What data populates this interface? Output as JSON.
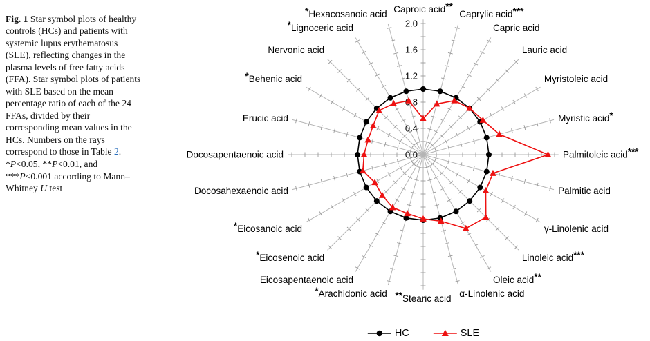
{
  "figure": {
    "caption": {
      "runs": [
        {
          "t": "Fig. 1",
          "b": true
        },
        {
          "t": "  Star symbol plots of healthy controls (HCs) and patients with systemic lupus erythematosus (SLE), reflecting changes in the plasma levels of free fatty acids (FFA). Star symbol plots of patients with SLE based on the mean percentage ratio of each of the 24 FFAs, divided by their corresponding mean values in the HCs. Numbers on the rays correspond to those in Table "
        },
        {
          "t": "2",
          "link": true
        },
        {
          "t": ". *"
        },
        {
          "t": "P",
          "i": true
        },
        {
          "t": "<0.05, **"
        },
        {
          "t": "P",
          "i": true
        },
        {
          "t": "<0.01, and ***"
        },
        {
          "t": "P",
          "i": true
        },
        {
          "t": "<0.001 according to Mann–Whitney "
        },
        {
          "t": "U",
          "i": true
        },
        {
          "t": " test"
        }
      ]
    }
  },
  "chart_data": {
    "type": "radar",
    "title": "Star symbol plot of plasma free fatty acid ratios (SLE / HC)",
    "rmax": 2.0,
    "tick_step": 0.2,
    "radial_ticks": [
      "0.0",
      "0.4",
      "0.8",
      "1.2",
      "1.6",
      "2.0"
    ],
    "legend_position": "bottom",
    "grid": "rays-with-ticks",
    "axes": [
      {
        "label": "Caproic acid",
        "sig": "**",
        "sig_pos": "after"
      },
      {
        "label": "Caprylic acid",
        "sig": "***",
        "sig_pos": "after"
      },
      {
        "label": "Capric acid",
        "sig": "",
        "sig_pos": "after"
      },
      {
        "label": "Lauric acid",
        "sig": "",
        "sig_pos": "after"
      },
      {
        "label": "Myristoleic acid",
        "sig": "",
        "sig_pos": "after"
      },
      {
        "label": "Myristic acid",
        "sig": "*",
        "sig_pos": "after"
      },
      {
        "label": "Palmitoleic acid",
        "sig": "***",
        "sig_pos": "after"
      },
      {
        "label": "Palmitic acid",
        "sig": "",
        "sig_pos": "after"
      },
      {
        "label": "γ-Linolenic acid",
        "sig": "",
        "sig_pos": "after"
      },
      {
        "label": "Linoleic acid",
        "sig": "***",
        "sig_pos": "after"
      },
      {
        "label": "Oleic acid",
        "sig": "**",
        "sig_pos": "after"
      },
      {
        "label": "α-Linolenic acid",
        "sig": "",
        "sig_pos": "after"
      },
      {
        "label": "Stearic acid",
        "sig": "**",
        "sig_pos": "before"
      },
      {
        "label": "Arachidonic acid",
        "sig": "*",
        "sig_pos": "before"
      },
      {
        "label": "Eicosapentaenoic acid",
        "sig": "",
        "sig_pos": "before"
      },
      {
        "label": "Eicosenoic acid",
        "sig": "*",
        "sig_pos": "before"
      },
      {
        "label": "Eicosanoic acid",
        "sig": "*",
        "sig_pos": "before"
      },
      {
        "label": "Docosahexaenoic acid",
        "sig": "",
        "sig_pos": "before"
      },
      {
        "label": "Docosapentaenoic acid",
        "sig": "",
        "sig_pos": "before"
      },
      {
        "label": "Erucic acid",
        "sig": "",
        "sig_pos": "before"
      },
      {
        "label": "Behenic acid",
        "sig": "*",
        "sig_pos": "before"
      },
      {
        "label": "Nervonic acid",
        "sig": "",
        "sig_pos": "before"
      },
      {
        "label": "Lignoceric acid",
        "sig": "*",
        "sig_pos": "before"
      },
      {
        "label": "Hexacosanoic acid",
        "sig": "*",
        "sig_pos": "before"
      }
    ],
    "series": [
      {
        "name": "HC",
        "color": "#000000",
        "marker": "circle",
        "values": [
          1.0,
          1.0,
          1.0,
          1.0,
          1.0,
          1.0,
          1.0,
          1.0,
          1.0,
          1.0,
          1.0,
          1.0,
          1.0,
          1.0,
          1.0,
          1.0,
          1.0,
          1.0,
          1.0,
          1.0,
          1.0,
          1.0,
          1.0,
          1.0
        ]
      },
      {
        "name": "SLE",
        "color": "#ee1111",
        "marker": "triangle",
        "values": [
          0.55,
          0.8,
          0.95,
          1.0,
          1.05,
          1.2,
          1.9,
          1.1,
          1.1,
          1.35,
          1.3,
          1.05,
          0.98,
          0.93,
          0.93,
          0.88,
          0.85,
          0.95,
          0.9,
          0.87,
          0.88,
          0.95,
          0.9,
          0.85
        ]
      }
    ]
  },
  "colors": {
    "ray": "#b5b5b5",
    "tick": "#999999",
    "text": "#000000",
    "link": "#2a6ebb"
  }
}
